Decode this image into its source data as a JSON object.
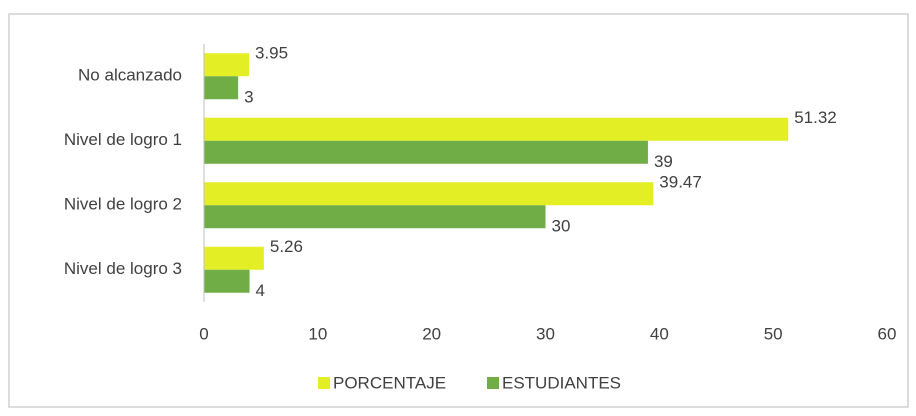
{
  "chart_data": {
    "type": "hbar",
    "categories": [
      "No alcanzado",
      "Nivel de logro 1",
      "Nivel de logro 2",
      "Nivel de logro 3"
    ],
    "series": [
      {
        "name": "PORCENTAJE",
        "color": "#e3ee24",
        "values": [
          3.95,
          51.32,
          39.47,
          5.26
        ]
      },
      {
        "name": "ESTUDIANTES",
        "color": "#70ad47",
        "values": [
          3,
          39,
          30,
          4
        ]
      }
    ],
    "xlim": [
      0,
      60
    ],
    "xticks": [
      0,
      10,
      20,
      30,
      40,
      50,
      60
    ],
    "grid": false,
    "legend": "bottom"
  }
}
